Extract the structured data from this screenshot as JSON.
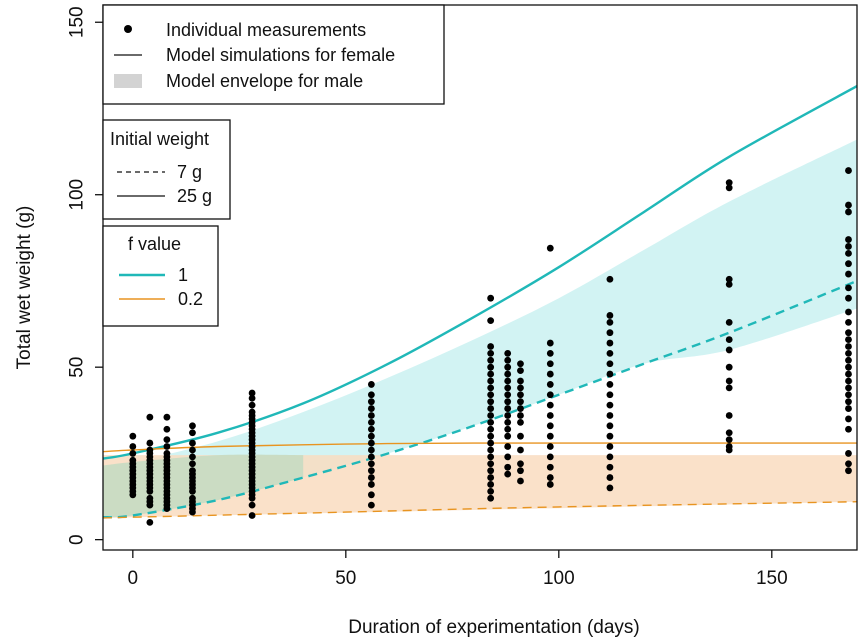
{
  "chart_data": {
    "type": "scatter",
    "xlabel": "Duration of experimentation (days)",
    "ylabel": "Total wet weight (g)",
    "xlim": [
      -7,
      170
    ],
    "ylim": [
      -3,
      155
    ],
    "x_ticks": [
      0,
      50,
      100,
      150
    ],
    "y_ticks": [
      0,
      50,
      100,
      150
    ],
    "grid": false,
    "colors": {
      "f1": "#20b8b8",
      "f02": "#e89420",
      "envelope_f1": "#d2f3f3",
      "envelope_f02": "#f9dcc0",
      "envelope_overlap": "#c6dcc2",
      "points": "#000000"
    },
    "legends": {
      "main": {
        "placement": "top-left",
        "entries": [
          {
            "symbol": "point",
            "label": "Individual measurements"
          },
          {
            "symbol": "line",
            "label": "Model simulations for female"
          },
          {
            "symbol": "band",
            "label": "Model envelope for male"
          }
        ]
      },
      "initial_weight": {
        "title": "Initial weight",
        "entries": [
          {
            "symbol": "dashed",
            "label": "7 g"
          },
          {
            "symbol": "solid",
            "label": "25 g"
          }
        ]
      },
      "f_value": {
        "title": "f value",
        "entries": [
          {
            "symbol": "line-f1",
            "label": "1"
          },
          {
            "symbol": "line-f02",
            "label": "0.2"
          }
        ]
      }
    },
    "model_curves": [
      {
        "f": "1",
        "initial_weight": "25 g",
        "style": "solid",
        "x": [
          -7,
          0,
          20,
          40,
          60,
          80,
          100,
          120,
          140,
          170
        ],
        "y": [
          23.5,
          25,
          31,
          39.5,
          51,
          64.5,
          79,
          95,
          111,
          131.5
        ]
      },
      {
        "f": "1",
        "initial_weight": "7 g",
        "style": "dashed",
        "x": [
          -7,
          0,
          20,
          40,
          60,
          80,
          100,
          120,
          140,
          170
        ],
        "y": [
          6.5,
          7,
          11.5,
          18,
          25,
          33,
          42,
          51,
          60,
          75
        ]
      },
      {
        "f": "0.2",
        "initial_weight": "25 g",
        "style": "solid",
        "x": [
          -7,
          0,
          20,
          50,
          80,
          120,
          170
        ],
        "y": [
          25.5,
          26,
          27,
          27.7,
          28,
          28,
          28
        ]
      },
      {
        "f": "0.2",
        "initial_weight": "7 g",
        "style": "dashed",
        "x": [
          -7,
          0,
          50,
          100,
          170
        ],
        "y": [
          6.3,
          6.5,
          8,
          9.5,
          11
        ]
      }
    ],
    "male_envelopes": [
      {
        "f": "1",
        "x": [
          -7,
          0,
          20,
          40,
          60,
          80,
          100,
          120,
          140,
          170
        ],
        "upper": [
          21.5,
          22.5,
          28.5,
          37,
          47,
          58,
          70,
          84,
          98,
          116
        ],
        "lower": [
          6.5,
          7,
          11.5,
          18,
          25,
          33,
          42,
          51,
          55,
          67
        ]
      },
      {
        "f": "0.2",
        "x": [
          -7,
          170
        ],
        "upper": [
          24.5,
          24.5
        ],
        "lower": [
          6.3,
          11
        ]
      }
    ],
    "measurements": [
      {
        "x": 0,
        "y": [
          30,
          27,
          25,
          23,
          22,
          21,
          20,
          19,
          18,
          17,
          16,
          15,
          14,
          13
        ]
      },
      {
        "x": 4,
        "y": [
          35.5,
          28,
          26,
          25,
          24,
          23,
          22,
          21,
          20,
          19,
          18,
          17,
          16,
          15,
          14,
          12,
          11,
          10,
          5
        ]
      },
      {
        "x": 8,
        "y": [
          35.5,
          32,
          29,
          27,
          25,
          24,
          23,
          22,
          21,
          20,
          19,
          18,
          17,
          16,
          15,
          14,
          13,
          12,
          11,
          10,
          9
        ]
      },
      {
        "x": 14,
        "y": [
          33,
          31,
          28,
          26,
          24,
          22,
          20,
          19,
          18,
          17,
          16,
          15,
          14,
          12,
          11,
          10,
          9,
          8
        ]
      },
      {
        "x": 28,
        "y": [
          42.5,
          41,
          39,
          37,
          36,
          35,
          34,
          33,
          32,
          31,
          30,
          29,
          28,
          27,
          26,
          25,
          24,
          23,
          22,
          21,
          20,
          19,
          18,
          17,
          16,
          15,
          14,
          13,
          12,
          10,
          7
        ]
      },
      {
        "x": 56,
        "y": [
          45,
          42,
          40,
          38,
          36,
          34,
          32,
          30,
          28,
          26,
          24,
          22,
          20,
          18,
          16,
          13,
          10
        ]
      },
      {
        "x": 84,
        "y": [
          70,
          63.5,
          56,
          54,
          52,
          50,
          48,
          46,
          44,
          42,
          40,
          38,
          36,
          34,
          32,
          30,
          28,
          26,
          24,
          22,
          20,
          18,
          16,
          14,
          12
        ]
      },
      {
        "x": 88,
        "y": [
          54,
          52,
          50,
          48,
          46,
          44,
          42,
          40,
          38,
          36,
          34,
          32,
          30,
          27,
          24,
          21,
          19
        ]
      },
      {
        "x": 91,
        "y": [
          51,
          49,
          46,
          44,
          42,
          40,
          38,
          36,
          34,
          30,
          26,
          22,
          20,
          17
        ]
      },
      {
        "x": 98,
        "y": [
          84.5,
          57,
          54,
          51,
          48,
          45,
          42,
          39,
          36,
          33,
          30,
          27,
          24,
          21,
          18,
          16
        ]
      },
      {
        "x": 112,
        "y": [
          75.5,
          65,
          63,
          60,
          57,
          54,
          51,
          48,
          45,
          42,
          39,
          36,
          33,
          30,
          27,
          24,
          21,
          18,
          15
        ]
      },
      {
        "x": 140,
        "y": [
          103.5,
          102,
          75.5,
          74,
          63,
          58,
          55,
          50,
          46,
          44,
          36,
          31,
          29,
          27,
          26
        ]
      },
      {
        "x": 168,
        "y": [
          107,
          97,
          95,
          87,
          85,
          83,
          80,
          77,
          73,
          70,
          66,
          63,
          60,
          58,
          56,
          54,
          52,
          50,
          48,
          46,
          44,
          42,
          40,
          38,
          35,
          32,
          25,
          22,
          20
        ]
      }
    ]
  }
}
